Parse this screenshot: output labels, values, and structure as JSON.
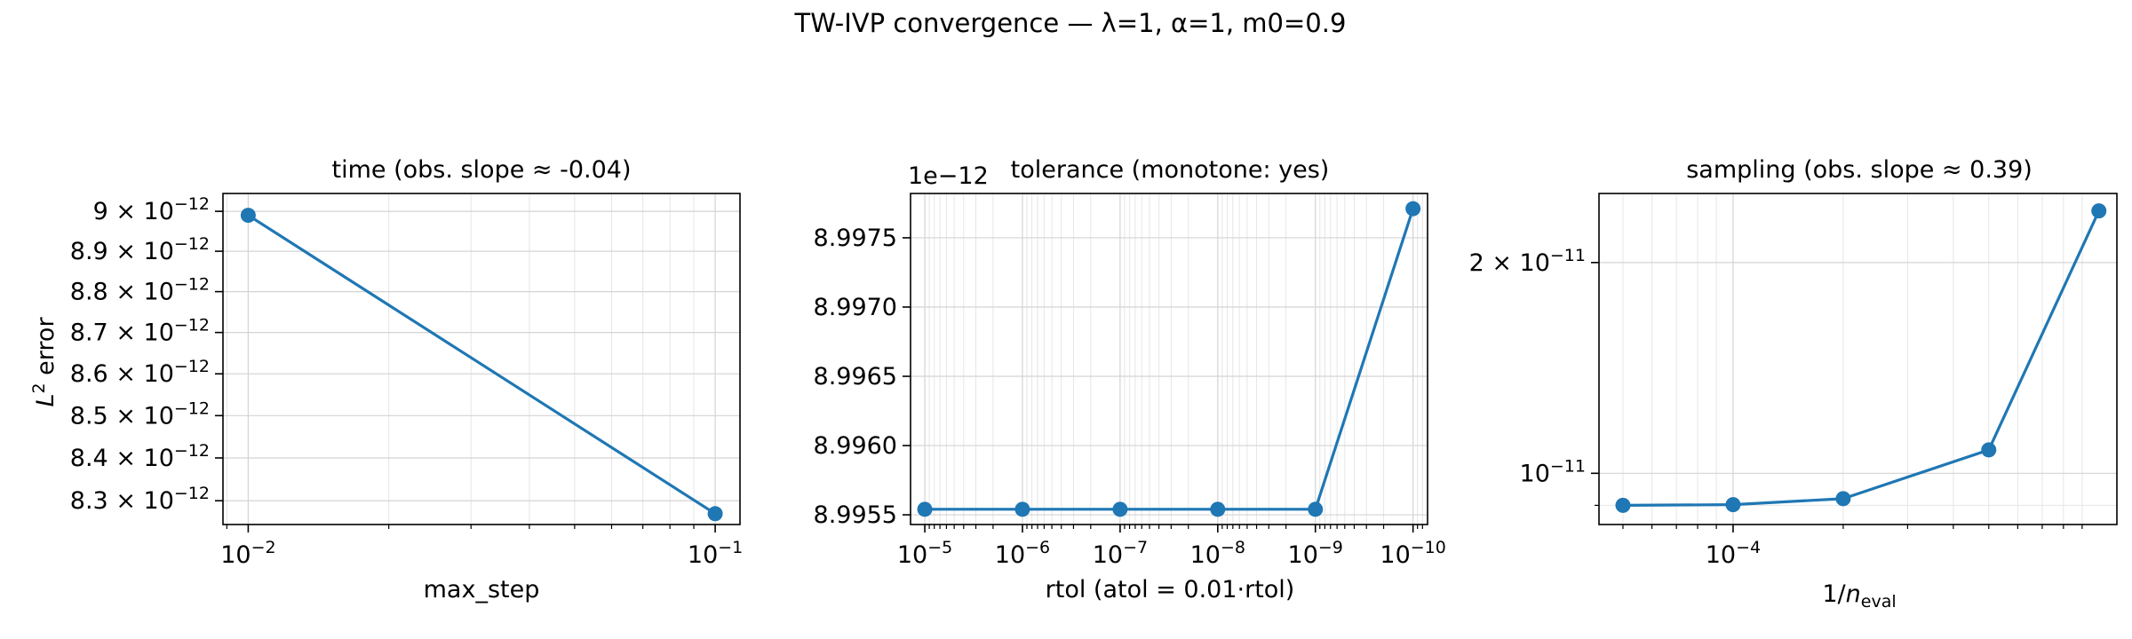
{
  "figure": {
    "suptitle": "TW-IVP convergence — λ=1, α=1, m0=0.9"
  },
  "chart_data": [
    {
      "type": "line",
      "title": "time (obs. slope ≈ -0.04)",
      "xlabel": "max_step",
      "ylabel": "L² error",
      "x_scale": "log",
      "y_scale": "log",
      "xlim": [
        0.00883,
        0.113
      ],
      "ylim": [
        8.245e-12,
        9.045e-12
      ],
      "grid": true,
      "x": [
        0.01,
        0.1
      ],
      "y": [
        8.99e-12,
        8.27e-12
      ],
      "xticks": [
        {
          "value": 0.01,
          "mant": "10",
          "exp": "−2"
        },
        {
          "value": 0.1,
          "mant": "10",
          "exp": "−1"
        }
      ],
      "yticks": [
        {
          "value": 9e-12,
          "mant": "9 × 10",
          "exp": "−12"
        },
        {
          "value": 8.9e-12,
          "mant": "8.9 × 10",
          "exp": "−12"
        },
        {
          "value": 8.8e-12,
          "mant": "8.8 × 10",
          "exp": "−12"
        },
        {
          "value": 8.7e-12,
          "mant": "8.7 × 10",
          "exp": "−12"
        },
        {
          "value": 8.6e-12,
          "mant": "8.6 × 10",
          "exp": "−12"
        },
        {
          "value": 8.5e-12,
          "mant": "8.5 × 10",
          "exp": "−12"
        },
        {
          "value": 8.4e-12,
          "mant": "8.4 × 10",
          "exp": "−12"
        },
        {
          "value": 8.3e-12,
          "mant": "8.3 × 10",
          "exp": "−12"
        }
      ],
      "color": "#1f77b4"
    },
    {
      "type": "line",
      "title": "tolerance (monotone: yes)",
      "xlabel": "rtol (atol = 0.01·rtol)",
      "ylabel": "",
      "x_scale": "log",
      "x_inverted": true,
      "y_scale": "linear",
      "y_offset_text": "1e−12",
      "xlim": [
        1.4e-05,
        7.1e-11
      ],
      "ylim": [
        8.99543,
        8.99782
      ],
      "grid": true,
      "x": [
        1e-05,
        1e-06,
        1e-07,
        1e-08,
        1e-09,
        1e-10
      ],
      "y": [
        8.99554,
        8.99554,
        8.99554,
        8.99554,
        8.99554,
        8.99771
      ],
      "xticks": [
        {
          "value": 1e-05,
          "mant": "10",
          "exp": "−5"
        },
        {
          "value": 1e-06,
          "mant": "10",
          "exp": "−6"
        },
        {
          "value": 1e-07,
          "mant": "10",
          "exp": "−7"
        },
        {
          "value": 1e-08,
          "mant": "10",
          "exp": "−8"
        },
        {
          "value": 1e-09,
          "mant": "10",
          "exp": "−9"
        },
        {
          "value": 1e-10,
          "mant": "10",
          "exp": "−10"
        }
      ],
      "yticks": [
        {
          "value": 8.9955,
          "label": "8.9955"
        },
        {
          "value": 8.996,
          "label": "8.9960"
        },
        {
          "value": 8.9965,
          "label": "8.9965"
        },
        {
          "value": 8.997,
          "label": "8.9970"
        },
        {
          "value": 8.9975,
          "label": "8.9975"
        }
      ],
      "color": "#1f77b4"
    },
    {
      "type": "line",
      "title": "sampling (obs. slope ≈ 0.39)",
      "xlabel": "1/n_eval",
      "ylabel": "",
      "x_scale": "log",
      "y_scale": "log",
      "xlim": [
        4.3e-05,
        0.00112
      ],
      "ylim": [
        8.45e-12,
        2.51e-11
      ],
      "grid": true,
      "x": [
        5e-05,
        0.0001,
        0.0002,
        0.0005,
        0.001
      ],
      "y": [
        9e-12,
        9.02e-12,
        9.2e-12,
        1.08e-11,
        2.37e-11
      ],
      "xticks": [
        {
          "value": 0.0001,
          "mant": "10",
          "exp": "−4"
        }
      ],
      "yticks": [
        {
          "value": 2e-11,
          "mant": "2 × 10",
          "exp": "−11"
        },
        {
          "value": 1e-11,
          "mant": "10",
          "exp": "−11"
        }
      ],
      "color": "#1f77b4"
    }
  ]
}
